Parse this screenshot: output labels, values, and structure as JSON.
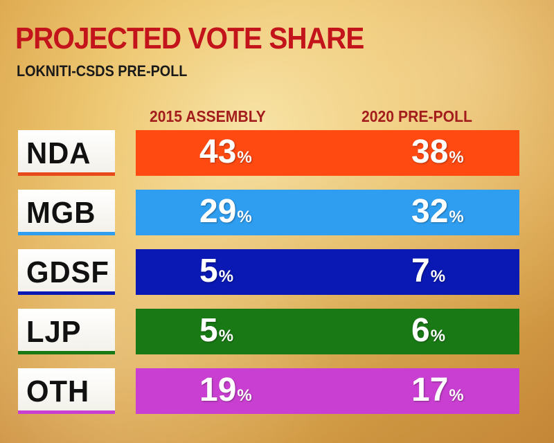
{
  "chart_data": {
    "type": "table",
    "title": "PROJECTED VOTE SHARE",
    "subtitle": "LOKNITI-CSDS PRE-POLL",
    "columns": [
      "2015 ASSEMBLY",
      "2020  PRE-POLL"
    ],
    "rows": [
      {
        "party": "NDA",
        "values": [
          "43",
          "38"
        ],
        "color": "#ff4a12",
        "underline": "#e8491a"
      },
      {
        "party": "MGB",
        "values": [
          "29",
          "32"
        ],
        "color": "#2f9ef0",
        "underline": "#2f9ef0"
      },
      {
        "party": "GDSF",
        "values": [
          "5",
          "7"
        ],
        "color": "#0a18b4",
        "underline": "#0a18b4"
      },
      {
        "party": "LJP",
        "values": [
          "5",
          "6"
        ],
        "color": "#197a15",
        "underline": "#197a15"
      },
      {
        "party": "OTH",
        "values": [
          "19",
          "17"
        ],
        "color": "#c93fd1",
        "underline": "#c93fd1"
      }
    ],
    "unit": "%"
  }
}
